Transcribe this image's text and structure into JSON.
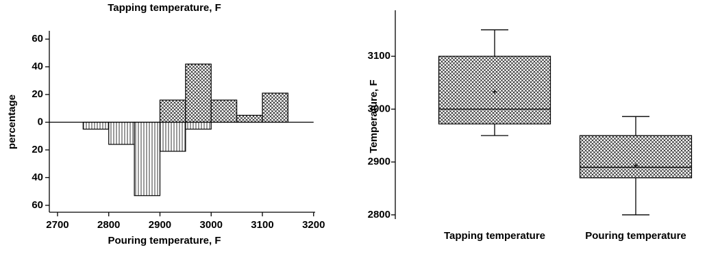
{
  "chart_data": [
    {
      "type": "histogram",
      "title": "Tapping temperature, F",
      "xlabel": "Pouring temperature, F",
      "ylabel": "percentage",
      "xlim": [
        2684,
        3203
      ],
      "xticks": [
        2700,
        2800,
        2900,
        3000,
        3100,
        3200
      ],
      "ylim": [
        -65,
        66
      ],
      "yticks": [
        60,
        40,
        20,
        0,
        {
          "value": -20,
          "label": "20"
        },
        {
          "value": -40,
          "label": "40"
        },
        {
          "value": -60,
          "label": "60"
        }
      ],
      "series": [
        {
          "bins": [
            2900,
            2950,
            3000,
            3050,
            3100,
            3150
          ],
          "values": [
            16,
            42,
            16,
            5,
            21
          ],
          "pattern": "crosshatch",
          "color": "#000000"
        },
        {
          "bins": [
            2750,
            2800,
            2850,
            2900,
            2950,
            3000
          ],
          "values": [
            -5,
            -16,
            -53,
            -21,
            -5
          ],
          "pattern": "vertical",
          "color": "#000000"
        }
      ]
    },
    {
      "type": "box",
      "ylabel": "Temperature, F",
      "categories": [
        "Tapping temperature",
        "Pouring temperature"
      ],
      "ylim": [
        2792,
        3187
      ],
      "yticks": [
        2800,
        2900,
        3000,
        3100
      ],
      "pattern": "crosshatch",
      "color": "#000000",
      "boxes": [
        {
          "min": 2950,
          "q1": 2972,
          "median": 3000,
          "q3": 3100,
          "max": 3150,
          "mean": 3033
        },
        {
          "min": 2800,
          "q1": 2870,
          "median": 2890,
          "q3": 2950,
          "max": 2986,
          "mean": 2893
        }
      ]
    }
  ]
}
